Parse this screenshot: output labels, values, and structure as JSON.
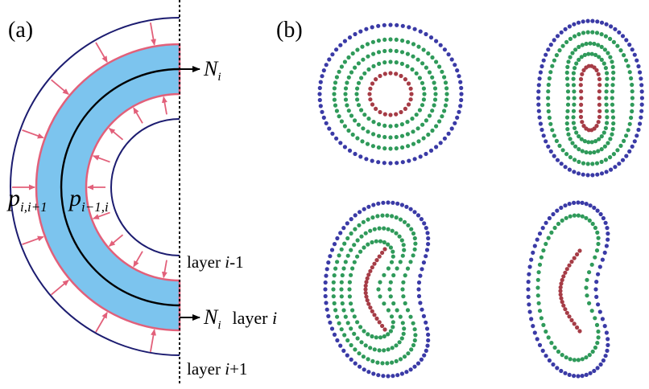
{
  "panel_a": {
    "label": "(a)",
    "normal_top": "N",
    "normal_top_sub": "i",
    "normal_bottom": "N",
    "normal_bottom_sub": "i",
    "normal_bottom_layer": "layer ",
    "normal_bottom_layer_var": "i",
    "p_outer": "p",
    "p_outer_sub": "i,i+1",
    "p_inner": "p",
    "p_inner_sub": "i−1,i",
    "layer_inner_prefix": "layer ",
    "layer_inner_var": "i",
    "layer_inner_suffix": "-1",
    "layer_outer_prefix": "layer ",
    "layer_outer_var": "i",
    "layer_outer_suffix": "+1",
    "colors": {
      "band_fill": "#7cc4ee",
      "boundary": "#e2607a",
      "layer_line": "#1c1c70",
      "midline": "#000000"
    }
  },
  "panel_b": {
    "label": "(b)",
    "ring_colors": [
      "#3a3aa6",
      "#2f9a5a",
      "#2f9a5a",
      "#2f9a5a",
      "#a63c46"
    ]
  }
}
